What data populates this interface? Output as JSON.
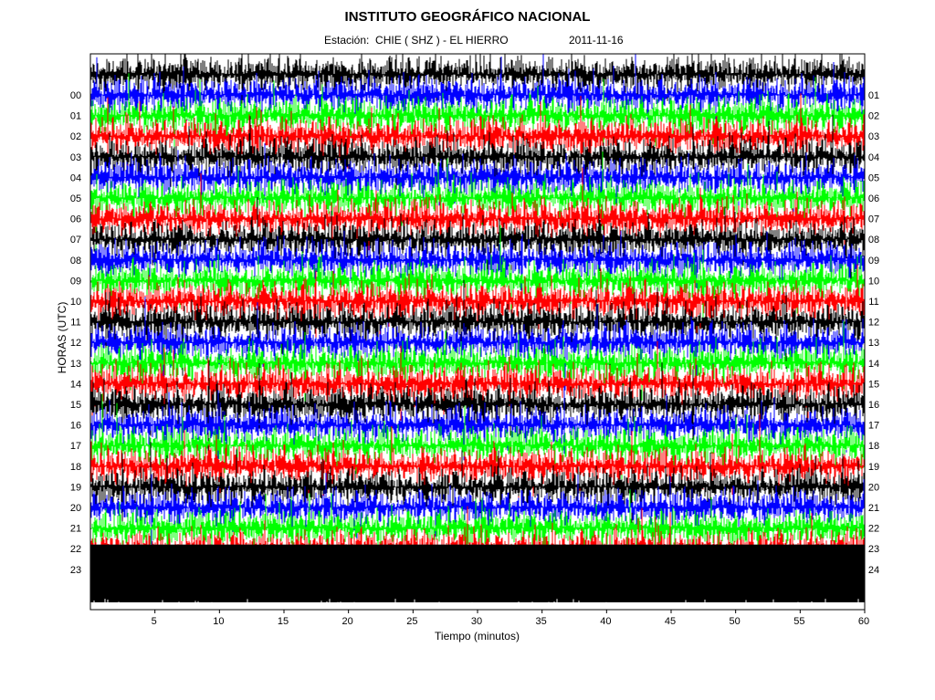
{
  "header": {
    "title": "INSTITUTO GEOGRÁFICO NACIONAL",
    "station": "Estación:  CHIE ( SHZ ) - EL HIERRO",
    "date": "2011-11-16"
  },
  "chart_data": {
    "type": "helicorder",
    "title": "INSTITUTO GEOGRÁFICO NACIONAL",
    "subtitle": "Estación:  CHIE ( SHZ ) - EL HIERRO",
    "date": "2011-11-16",
    "xlabel": "Tiempo (minutos)",
    "ylabel": "HORAS (UTC)",
    "xlim": [
      0,
      60
    ],
    "x_ticks": [
      5,
      10,
      15,
      20,
      25,
      30,
      35,
      40,
      45,
      50,
      55,
      60
    ],
    "left_hour_labels": [
      "00",
      "01",
      "02",
      "03",
      "04",
      "05",
      "06",
      "07",
      "08",
      "09",
      "10",
      "11",
      "12",
      "13",
      "14",
      "15",
      "16",
      "17",
      "18",
      "19",
      "20",
      "21",
      "22",
      "23"
    ],
    "right_hour_labels": [
      "01",
      "02",
      "03",
      "04",
      "05",
      "06",
      "07",
      "08",
      "09",
      "10",
      "11",
      "12",
      "13",
      "14",
      "15",
      "16",
      "17",
      "18",
      "19",
      "20",
      "21",
      "22",
      "23",
      "24"
    ],
    "trace_colors_cycle": [
      "#0000ff",
      "#00ff00",
      "#ff0000",
      "#000000"
    ],
    "trace_color_names": [
      "blue",
      "green",
      "red",
      "black"
    ],
    "rows_missing_data_after_hour": "22",
    "grid": false
  }
}
